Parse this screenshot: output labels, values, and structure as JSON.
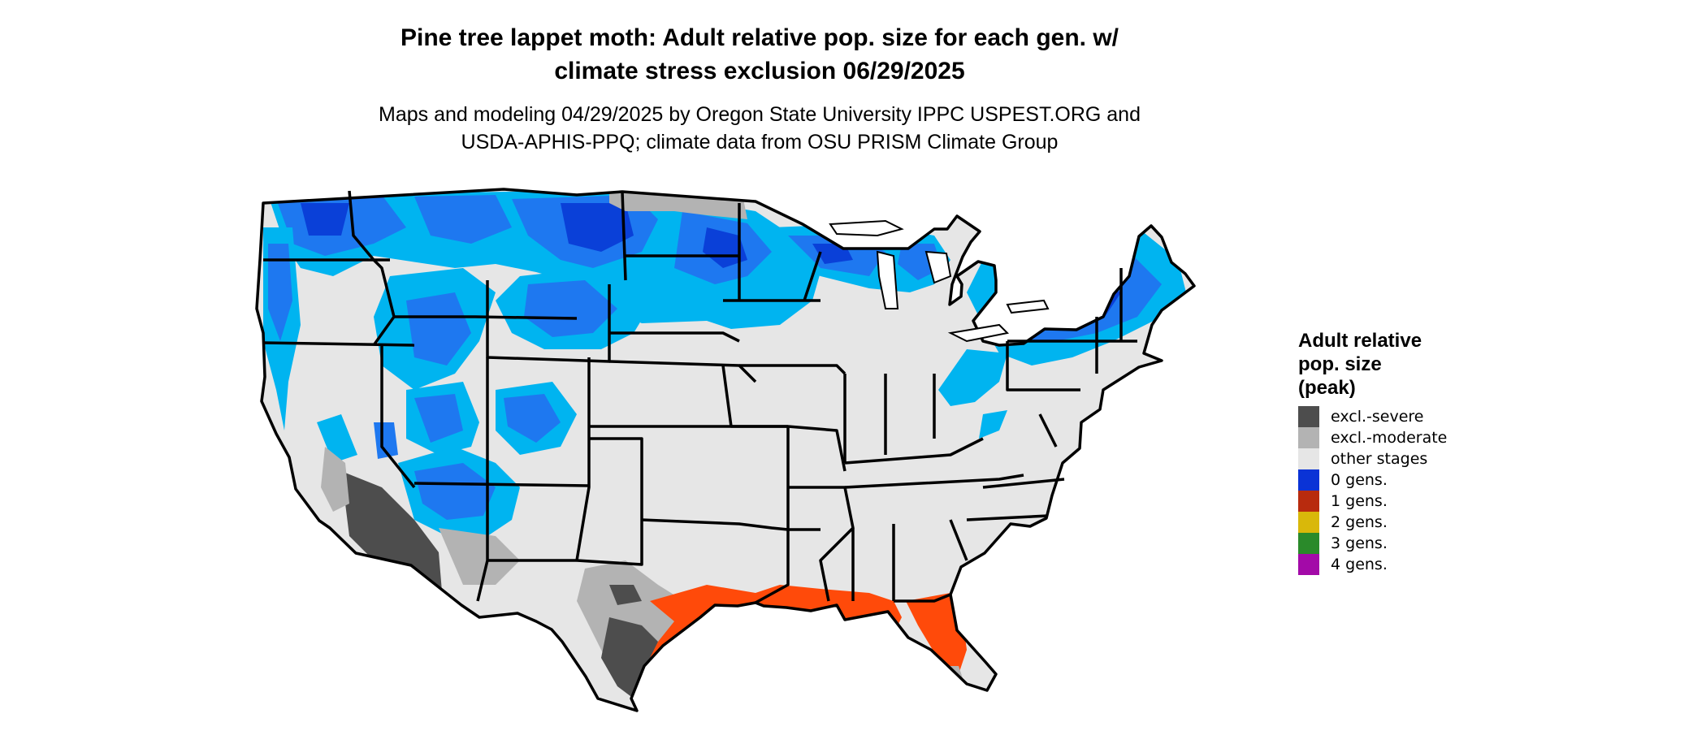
{
  "title_line1": "Pine tree lappet moth: Adult relative pop. size for each gen. w/",
  "title_line2": "climate stress exclusion 06/29/2025",
  "subtitle_line1": "Maps and modeling 04/29/2025 by Oregon State University IPPC USPEST.ORG and",
  "subtitle_line2": "USDA-APHIS-PPQ; climate data from OSU PRISM Climate Group",
  "legend": {
    "title_line1": "Adult relative",
    "title_line2": "pop. size",
    "title_line3": "(peak)",
    "items": [
      {
        "label": "excl.-severe",
        "color": "#4d4d4d"
      },
      {
        "label": "excl.-moderate",
        "color": "#b3b3b3"
      },
      {
        "label": "other stages",
        "color": "#e6e6e6"
      },
      {
        "label": "0 gens.",
        "color": "#0a33d6"
      },
      {
        "label": "1 gens.",
        "color": "#b82b0e"
      },
      {
        "label": "2 gens.",
        "color": "#d9b80a"
      },
      {
        "label": "3 gens.",
        "color": "#2a8a2a"
      },
      {
        "label": "4 gens.",
        "color": "#a30aa8"
      }
    ]
  },
  "map_colors": {
    "land": "#e6e6e6",
    "light_blue": "#00b4f0",
    "mid_blue": "#1e78f0",
    "dark_blue": "#0a40d8",
    "orange": "#ff4a0a",
    "dark_gray": "#4d4d4d",
    "light_gray": "#b3b3b3",
    "border": "#000000"
  }
}
